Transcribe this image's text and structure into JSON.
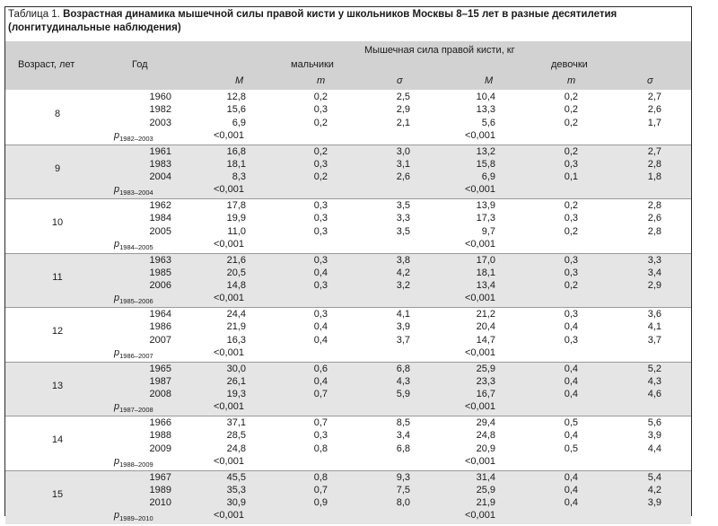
{
  "caption": {
    "prefix": "Таблица 1. ",
    "title": "Возрастная динамика мышечной силы правой кисти у школьников Москвы 8–15 лет в разные десятилетия (лонгитудинальные наблюдения)"
  },
  "header": {
    "age": "Возраст, лет",
    "year": "Год",
    "span": "Мышечная сила правой кисти, кг",
    "boys": "мальчики",
    "girls": "девочки",
    "m_mean": "M",
    "m_err": "m",
    "sigma": "σ"
  },
  "groups": [
    {
      "age": "8",
      "rows": [
        [
          "1960",
          "12,8",
          "0,2",
          "2,5",
          "10,4",
          "0,2",
          "2,7"
        ],
        [
          "1982",
          "15,6",
          "0,3",
          "2,9",
          "13,3",
          "0,2",
          "2,6"
        ],
        [
          "2003",
          "6,9",
          "0,2",
          "2,1",
          "5,6",
          "0,2",
          "1,7"
        ]
      ],
      "p_sub": "1982–2003",
      "p_boys": "<0,001",
      "p_girls": "<0,001"
    },
    {
      "age": "9",
      "rows": [
        [
          "1961",
          "16,8",
          "0,2",
          "3,0",
          "13,2",
          "0,2",
          "2,7"
        ],
        [
          "1983",
          "18,1",
          "0,3",
          "3,1",
          "15,8",
          "0,3",
          "2,8"
        ],
        [
          "2004",
          "8,3",
          "0,2",
          "2,6",
          "6,9",
          "0,1",
          "1,8"
        ]
      ],
      "p_sub": "1983–2004",
      "p_boys": "<0,001",
      "p_girls": "<0,001"
    },
    {
      "age": "10",
      "rows": [
        [
          "1962",
          "17,8",
          "0,3",
          "3,5",
          "13,9",
          "0,2",
          "2,8"
        ],
        [
          "1984",
          "19,9",
          "0,3",
          "3,3",
          "17,3",
          "0,3",
          "2,6"
        ],
        [
          "2005",
          "11,0",
          "0,3",
          "3,5",
          "9,7",
          "0,2",
          "2,8"
        ]
      ],
      "p_sub": "1984–2005",
      "p_boys": "<0,001",
      "p_girls": "<0,001"
    },
    {
      "age": "11",
      "rows": [
        [
          "1963",
          "21,6",
          "0,3",
          "3,8",
          "17,0",
          "0,3",
          "3,3"
        ],
        [
          "1985",
          "20,5",
          "0,4",
          "4,2",
          "18,1",
          "0,3",
          "3,4"
        ],
        [
          "2006",
          "14,8",
          "0,3",
          "3,2",
          "13,4",
          "0,2",
          "2,9"
        ]
      ],
      "p_sub": "1985–2006",
      "p_boys": "<0,001",
      "p_girls": "<0,001"
    },
    {
      "age": "12",
      "rows": [
        [
          "1964",
          "24,4",
          "0,3",
          "4,1",
          "21,2",
          "0,3",
          "3,6"
        ],
        [
          "1986",
          "21,9",
          "0,4",
          "3,9",
          "20,4",
          "0,4",
          "4,1"
        ],
        [
          "2007",
          "16,3",
          "0,4",
          "3,7",
          "14,7",
          "0,3",
          "3,7"
        ]
      ],
      "p_sub": "1986–2007",
      "p_boys": "<0,001",
      "p_girls": "<0,001"
    },
    {
      "age": "13",
      "rows": [
        [
          "1965",
          "30,0",
          "0,6",
          "6,8",
          "25,9",
          "0,4",
          "5,2"
        ],
        [
          "1987",
          "26,1",
          "0,4",
          "4,3",
          "23,3",
          "0,4",
          "4,3"
        ],
        [
          "2008",
          "19,3",
          "0,7",
          "5,9",
          "16,7",
          "0,4",
          "4,6"
        ]
      ],
      "p_sub": "1987–2008",
      "p_boys": "<0,001",
      "p_girls": "<0,001"
    },
    {
      "age": "14",
      "rows": [
        [
          "1966",
          "37,1",
          "0,7",
          "8,5",
          "29,4",
          "0,5",
          "5,6"
        ],
        [
          "1988",
          "28,5",
          "0,3",
          "3,4",
          "24,8",
          "0,4",
          "3,9"
        ],
        [
          "2009",
          "24,8",
          "0,8",
          "6,8",
          "20,9",
          "0,5",
          "4,4"
        ]
      ],
      "p_sub": "1988–2009",
      "p_boys": "<0,001",
      "p_girls": "<0,001"
    },
    {
      "age": "15",
      "rows": [
        [
          "1967",
          "45,5",
          "0,8",
          "9,3",
          "31,4",
          "0,4",
          "5,4"
        ],
        [
          "1989",
          "35,3",
          "0,7",
          "7,5",
          "25,9",
          "0,4",
          "4,2"
        ],
        [
          "2010",
          "30,9",
          "0,9",
          "8,0",
          "21,9",
          "0,4",
          "3,9"
        ]
      ],
      "p_sub": "1989–2010",
      "p_boys": "<0,001",
      "p_girls": "<0,001"
    }
  ]
}
